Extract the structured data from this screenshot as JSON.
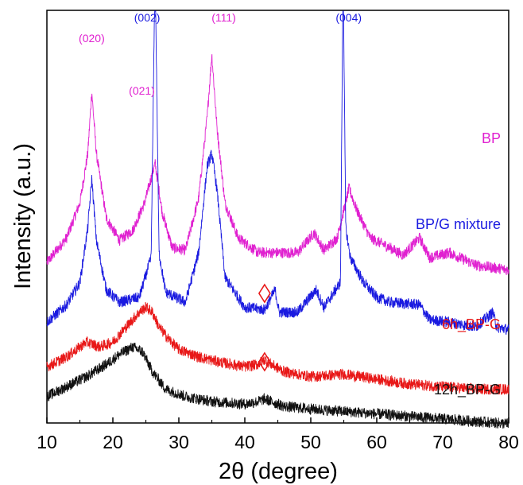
{
  "chart_data": {
    "type": "line",
    "title": "",
    "xlabel": "2θ (degree)",
    "ylabel": "Intensity (a.u.)",
    "xlim": [
      10,
      80
    ],
    "x_ticks": [
      "10",
      "20",
      "30",
      "40",
      "50",
      "60",
      "70",
      "80"
    ],
    "x_tick_values": [
      10,
      20,
      30,
      40,
      50,
      60,
      70,
      80
    ],
    "grid": false,
    "y_ticks_shown": false,
    "series": [
      {
        "name": "BP",
        "color": "#e020d0",
        "baseline": 0.55,
        "x": [
          10,
          13,
          15,
          16.2,
          16.8,
          17.5,
          19,
          21,
          23,
          24.8,
          26.4,
          27.5,
          29,
          31,
          33,
          34.3,
          35,
          35.8,
          37,
          39,
          42,
          45,
          48,
          50.5,
          52,
          54,
          55.8,
          57,
          59,
          62,
          64,
          66.5,
          68,
          71,
          75,
          80
        ],
        "y": [
          0.56,
          0.66,
          0.8,
          1.0,
          1.25,
          1.0,
          0.74,
          0.65,
          0.69,
          0.8,
          0.96,
          0.76,
          0.62,
          0.61,
          0.82,
          1.15,
          1.4,
          1.1,
          0.8,
          0.66,
          0.6,
          0.6,
          0.6,
          0.68,
          0.61,
          0.66,
          0.86,
          0.77,
          0.66,
          0.62,
          0.59,
          0.66,
          0.58,
          0.6,
          0.55,
          0.53
        ]
      },
      {
        "name": "BP/G mixture",
        "color": "#1a1ae0",
        "baseline": 0.3,
        "x": [
          10,
          13,
          15,
          16.2,
          16.8,
          17.5,
          19,
          21,
          24,
          25.8,
          26.4,
          27.0,
          28,
          31,
          33,
          34.3,
          35,
          35.8,
          37,
          40,
          43,
          44.6,
          45.2,
          48,
          50.8,
          52,
          54.5,
          54.9,
          55.3,
          56,
          58,
          60,
          62,
          66.5,
          68,
          71,
          75,
          77.6,
          78.2,
          80
        ],
        "y": [
          0.32,
          0.39,
          0.48,
          0.7,
          0.9,
          0.65,
          0.45,
          0.4,
          0.42,
          0.58,
          1.75,
          0.6,
          0.44,
          0.4,
          0.6,
          0.95,
          1.0,
          0.85,
          0.5,
          0.38,
          0.37,
          0.45,
          0.36,
          0.36,
          0.45,
          0.38,
          0.48,
          1.75,
          0.7,
          0.58,
          0.48,
          0.42,
          0.4,
          0.39,
          0.33,
          0.32,
          0.3,
          0.36,
          0.3,
          0.29
        ]
      },
      {
        "name": "6h_BP-G",
        "color": "#e81818",
        "baseline": 0.14,
        "x": [
          10,
          13,
          16,
          18,
          20,
          22,
          24,
          25,
          26,
          27,
          28.5,
          30,
          33,
          36,
          40,
          42,
          43,
          44,
          46,
          50,
          55,
          60,
          65,
          70,
          75,
          80
        ],
        "y": [
          0.14,
          0.18,
          0.24,
          0.22,
          0.24,
          0.3,
          0.36,
          0.38,
          0.36,
          0.3,
          0.25,
          0.21,
          0.18,
          0.16,
          0.14,
          0.15,
          0.17,
          0.15,
          0.12,
          0.1,
          0.11,
          0.09,
          0.07,
          0.06,
          0.05,
          0.05
        ]
      },
      {
        "name": "12h_BP-G",
        "color": "#111111",
        "baseline": 0.0,
        "x": [
          10,
          13,
          16,
          19,
          21,
          23,
          24.5,
          26,
          28,
          31,
          35,
          40,
          42,
          43,
          44,
          46,
          50,
          55,
          60,
          65,
          70,
          75,
          80
        ],
        "y": [
          0.02,
          0.06,
          0.1,
          0.15,
          0.19,
          0.22,
          0.2,
          0.12,
          0.05,
          0.02,
          0.0,
          -0.01,
          0.0,
          0.01,
          0.0,
          -0.02,
          -0.03,
          -0.04,
          -0.05,
          -0.06,
          -0.07,
          -0.08,
          -0.09
        ]
      }
    ],
    "series_labels": [
      {
        "text": "BP",
        "color": "#e020d0"
      },
      {
        "text": "BP/G mixture",
        "color": "#1a1ae0"
      },
      {
        "text": "6h_BP-G",
        "color": "#e81818"
      },
      {
        "text": "12h_BP-G",
        "color": "#111111"
      }
    ],
    "peak_labels": [
      {
        "text": "(020)",
        "color": "#e020d0",
        "x": 16.8
      },
      {
        "text": "(021)",
        "color": "#e020d0",
        "x": 25.6
      },
      {
        "text": "(002)",
        "color": "#1a1ae0",
        "x": 26.4
      },
      {
        "text": "(111)",
        "color": "#e020d0",
        "x": 35.0
      },
      {
        "text": "(004)",
        "color": "#1a1ae0",
        "x": 54.9
      }
    ],
    "markers": [
      {
        "shape": "diamond",
        "color": "#e81818",
        "x": 43
      },
      {
        "shape": "diamond",
        "color": "#e81818",
        "x": 43
      }
    ]
  }
}
